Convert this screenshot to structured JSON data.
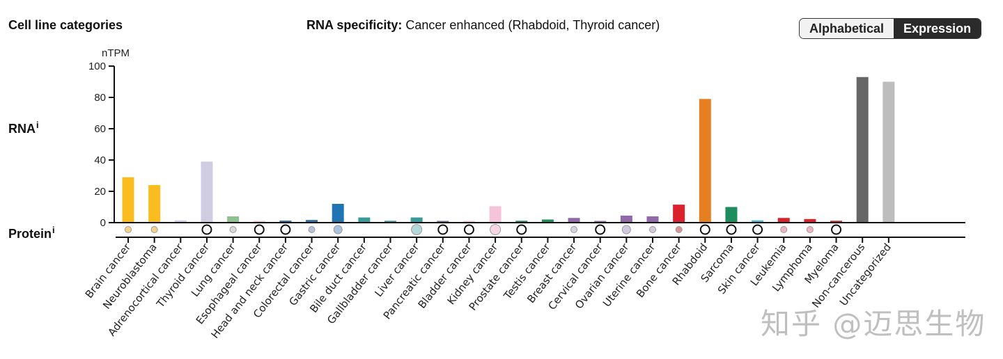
{
  "header": {
    "section_title": "Cell line categories",
    "specificity_label": "RNA specificity:",
    "specificity_value": "Cancer enhanced (Rhabdoid, Thyroid cancer)",
    "sort_toggle": {
      "options": [
        "Alphabetical",
        "Expression"
      ],
      "active": "Expression"
    }
  },
  "rows": {
    "rna_label": "RNA",
    "protein_label": "Protein",
    "info_marker": "i"
  },
  "watermark": "知乎 @迈思生物",
  "chart_data": {
    "type": "bar",
    "title": "RNA specificity: Cancer enhanced (Rhabdoid, Thyroid cancer)",
    "ylabel": "nTPM",
    "xlabel": "",
    "ylim": [
      0,
      100
    ],
    "yticks": [
      0,
      20,
      40,
      60,
      80,
      100
    ],
    "grid": false,
    "categories": [
      "Brain cancer",
      "Neuroblastoma",
      "Adrenocortical cancer",
      "Thyroid cancer",
      "Lung cancer",
      "Esophageal cancer",
      "Head and neck cancer",
      "Colorectal cancer",
      "Gastric cancer",
      "Bile duct cancer",
      "Gallbladder cancer",
      "Liver cancer",
      "Pancreatic cancer",
      "Bladder cancer",
      "Kidney cancer",
      "Prostate cancer",
      "Testis cancer",
      "Breast cancer",
      "Cervical cancer",
      "Ovarian cancer",
      "Uterine cancer",
      "Bone cancer",
      "Rhabdoid",
      "Sarcoma",
      "Skin cancer",
      "Leukemia",
      "Lymphoma",
      "Myeloma",
      "Non-cancerous",
      "Uncategorized"
    ],
    "values": [
      29,
      24,
      1.5,
      39,
      4,
      0.6,
      1.3,
      1.7,
      12,
      3.3,
      1.2,
      3.3,
      1,
      0.8,
      10.5,
      1.2,
      2,
      3,
      1,
      4.5,
      4,
      11.5,
      79,
      10,
      1.5,
      3,
      2.3,
      1.2,
      93,
      90
    ],
    "colors": [
      "#fbbc20",
      "#fbbc20",
      "#d0cde3",
      "#d0cde3",
      "#8fc18f",
      "#f3c5cf",
      "#2a6fa8",
      "#2a6fa8",
      "#1f74b4",
      "#3a9a99",
      "#3a9a99",
      "#3a9a99",
      "#7a6b92",
      "#f6c6d4",
      "#f6c4da",
      "#1d8d5e",
      "#1d8d5e",
      "#9168a8",
      "#9168a8",
      "#9168a8",
      "#9168a8",
      "#d9222c",
      "#e67e22",
      "#1d8d5e",
      "#4bbbd1",
      "#d9222c",
      "#d9222c",
      "#d9222c",
      "#666666",
      "#bdbdbd"
    ],
    "protein": [
      {
        "type": "filled",
        "size": "small",
        "color": "#f3d188"
      },
      {
        "type": "filled",
        "size": "small",
        "color": "#f3d188"
      },
      {
        "type": "none"
      },
      {
        "type": "empty"
      },
      {
        "type": "filled",
        "size": "small",
        "color": "#d9d9d9"
      },
      {
        "type": "empty"
      },
      {
        "type": "empty"
      },
      {
        "type": "filled",
        "size": "small",
        "color": "#b7c2d6"
      },
      {
        "type": "filled",
        "size": "medium",
        "color": "#a9c3de"
      },
      {
        "type": "none"
      },
      {
        "type": "none"
      },
      {
        "type": "filled",
        "size": "large",
        "color": "#b2d8d9"
      },
      {
        "type": "empty"
      },
      {
        "type": "empty"
      },
      {
        "type": "filled",
        "size": "large",
        "color": "#f9d4e2"
      },
      {
        "type": "empty"
      },
      {
        "type": "none"
      },
      {
        "type": "filled",
        "size": "small",
        "color": "#d6d2e0"
      },
      {
        "type": "empty"
      },
      {
        "type": "filled",
        "size": "medium",
        "color": "#d3c8df"
      },
      {
        "type": "filled",
        "size": "small",
        "color": "#d3c8df"
      },
      {
        "type": "filled",
        "size": "small",
        "color": "#d99595"
      },
      {
        "type": "empty"
      },
      {
        "type": "empty"
      },
      {
        "type": "empty"
      },
      {
        "type": "filled",
        "size": "small",
        "color": "#f1b3c0"
      },
      {
        "type": "filled",
        "size": "small",
        "color": "#f1b3c0"
      },
      {
        "type": "empty"
      },
      {
        "type": "none"
      },
      {
        "type": "none"
      }
    ]
  }
}
